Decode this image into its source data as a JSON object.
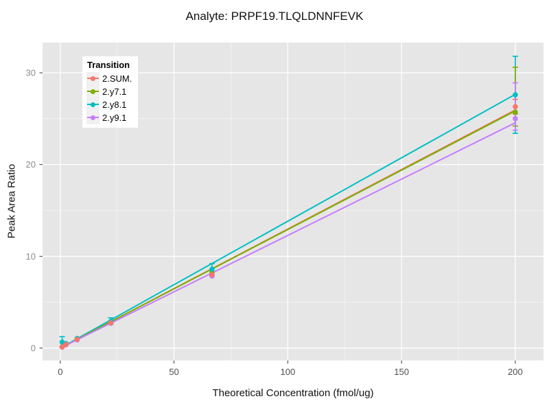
{
  "chart_data": {
    "type": "line",
    "title": "Analyte: PRPF19.TLQLDNNFEVK",
    "xlabel": "Theoretical Concentration (fmol/ug)",
    "ylabel": "Peak Area Ratio",
    "x_ticks": [
      0,
      50,
      100,
      150,
      200
    ],
    "y_ticks": [
      0,
      10,
      20,
      30
    ],
    "x_minor_ticks": [
      25,
      75,
      125,
      175
    ],
    "y_minor_ticks": [
      5,
      15,
      25
    ],
    "x_range": [
      -7.8,
      212.4
    ],
    "y_range": [
      -1.35,
      33.29
    ],
    "grid": "major-and-minor-white-on-grey",
    "legend_position": "inside-top-left",
    "panel_bg": "#E6E6E6",
    "grid_color": "#FFFFFF",
    "x_tick_label_color": "#4D4D4D",
    "y_tick_label_color": "#8C8C8C",
    "x": [
      0.82,
      2.47,
      7.41,
      22.2,
      66.7,
      200
    ],
    "series": [
      {
        "name": "2.SUM.",
        "color": "#F8766D",
        "points_y": [
          0.12,
          0.4,
          0.95,
          2.75,
          8.0,
          26.3
        ],
        "trend": {
          "x": [
            0,
            200
          ],
          "y": [
            0,
            25.95
          ]
        },
        "errorbars": [
          {
            "x": 200,
            "lo": 25.5,
            "hi": 27.1
          }
        ]
      },
      {
        "name": "2.y8.1",
        "color": "#00BFC4",
        "points_y": [
          0.65,
          0.5,
          1.05,
          2.9,
          8.6,
          27.6
        ],
        "trend": {
          "x": [
            0,
            200
          ],
          "y": [
            0,
            27.65
          ]
        },
        "errorbars": [
          {
            "x": 0.82,
            "lo": 0.15,
            "hi": 1.25
          },
          {
            "x": 22.2,
            "lo": 2.6,
            "hi": 3.3
          },
          {
            "x": 66.7,
            "lo": 7.95,
            "hi": 9.2
          },
          {
            "x": 200,
            "lo": 23.4,
            "hi": 31.8
          }
        ]
      },
      {
        "name": "2.y7.1",
        "color": "#7CAE00",
        "points_y": [
          0.15,
          0.42,
          1.0,
          2.85,
          8.25,
          25.7
        ],
        "trend": {
          "x": [
            0,
            200
          ],
          "y": [
            0,
            25.85
          ]
        },
        "errorbars": [
          {
            "x": 200,
            "lo": 24.2,
            "hi": 30.6
          }
        ]
      },
      {
        "name": "2.y9.1",
        "color": "#C77CFF",
        "points_y": [
          0.1,
          0.35,
          0.9,
          2.7,
          7.85,
          25.0
        ],
        "trend": {
          "x": [
            0,
            200
          ],
          "y": [
            0,
            24.55
          ]
        },
        "errorbars": [
          {
            "x": 200,
            "lo": 23.75,
            "hi": 28.9
          }
        ]
      }
    ]
  },
  "legend": {
    "title": "Transition",
    "items": [
      {
        "label": "2.SUM.",
        "color": "#F8766D"
      },
      {
        "label": "2.y7.1",
        "color": "#7CAE00"
      },
      {
        "label": "2.y8.1",
        "color": "#00BFC4"
      },
      {
        "label": "2.y9.1",
        "color": "#C77CFF"
      }
    ]
  }
}
